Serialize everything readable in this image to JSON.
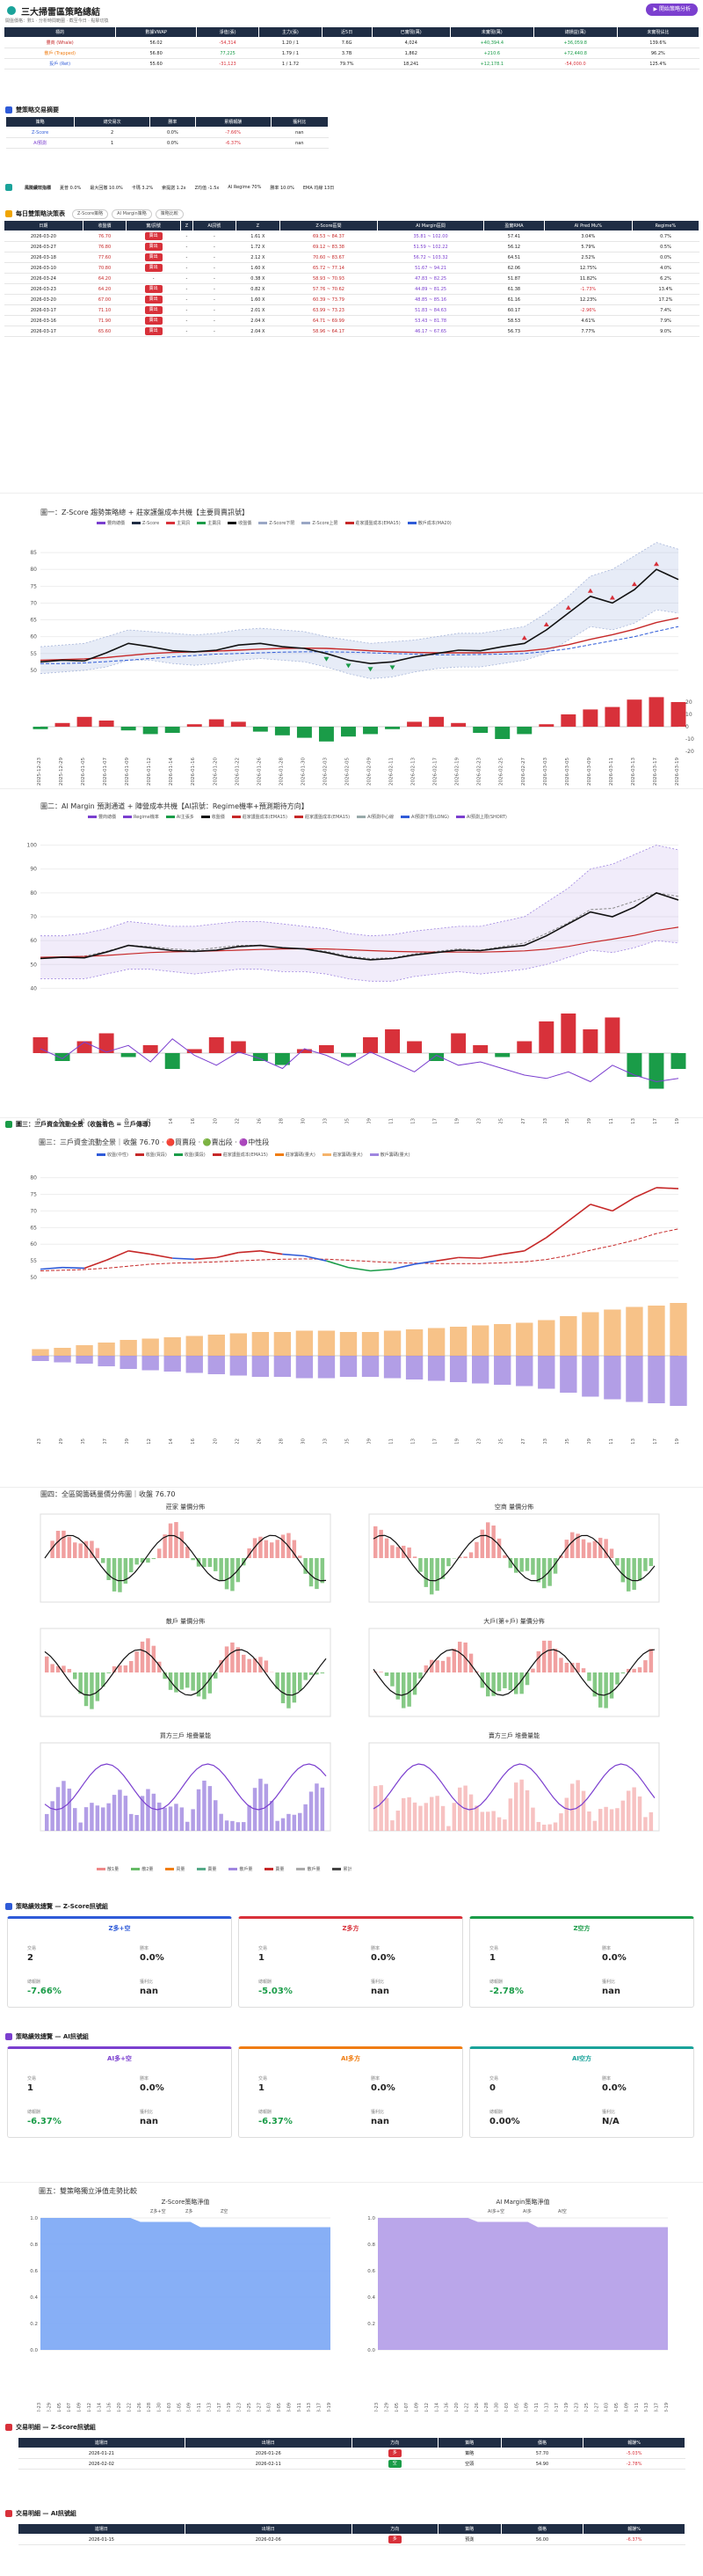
{
  "app": {
    "title": "三大掃雷區策略總結",
    "cta": "▶ 開始策略分析"
  },
  "subline": "開盤價格：數1 · 分析時間範圍 · 截至今日 · 點擊切換",
  "summary": {
    "headers": [
      "標的",
      "數據VWAP",
      "淨值(張)",
      "主力(張)",
      "近5日",
      "已實現(萬)",
      "未實現(萬)",
      "總損益(萬)",
      "未實現佔比"
    ],
    "rows": [
      [
        "豐商 (Whale)",
        "56.02",
        "-54,314",
        "1.20 / 1",
        "7.6G",
        "4,024",
        "+40,394.4",
        "+36,059.8",
        "139.6%"
      ],
      [
        "散戶 (Trapped)",
        "56.80",
        "77,225",
        "1.79 / 1",
        "3.7B",
        "1,862",
        "+210.6",
        "+72,440.8",
        "96.2%"
      ],
      [
        "投戶 (Ret)",
        "55.60",
        "-31,123",
        "1 / 1.72",
        "79.7%",
        "18,241",
        "+12,178.1",
        "-54,000.0",
        "125.4%"
      ]
    ]
  },
  "strategy": {
    "title": "雙策略交易摘要",
    "headers": [
      "策略",
      "總交易次",
      "勝率",
      "累積報酬",
      "獲利比"
    ],
    "rows": [
      [
        "Z-Score",
        "2",
        "0.0%",
        "-7.66%",
        "nan"
      ],
      [
        "AI預測",
        "1",
        "0.0%",
        "-6.37%",
        "nan"
      ]
    ]
  },
  "perf": {
    "label": "風險績效指標",
    "items": [
      "夏普 0.0%",
      "最大回撤 10.0%",
      "卡瑪 3.2%",
      "索提諾 1.2x",
      "Z均值 -1.5x",
      "AI Regime 70%",
      "勝率 10.0%",
      "EMA 均線 13日"
    ]
  },
  "daily": {
    "title": "每日雙策略決策表",
    "tabs": [
      "Z-Score策略",
      "AI Margin策略",
      "策略比較"
    ],
    "headers": [
      "日期",
      "收盤價",
      "實/訊號",
      "Z",
      "AI訊號",
      "Z",
      "Z-Score區間",
      "AI Margin區間",
      "盈實RMA",
      "AI Pred Mu%",
      "Regime%"
    ],
    "rows": [
      [
        "2026-03-20",
        "76.70",
        "賣出",
        "-",
        "-",
        "1.61 X",
        "69.53 ~ 84.37",
        "35.81 ~ 102.00",
        "57.41",
        "3.04%",
        "0.7%"
      ],
      [
        "2026-03-27",
        "76.80",
        "賣出",
        "-",
        "-",
        "1.72 X",
        "69.12 ~ 83.38",
        "51.59 ~ 102.22",
        "56.12",
        "5.79%",
        "0.5%"
      ],
      [
        "2026-03-18",
        "77.60",
        "賣出",
        "-",
        "-",
        "2.12 X",
        "70.60 ~ 83.67",
        "56.72 ~ 103.32",
        "64.51",
        "2.52%",
        "0.0%"
      ],
      [
        "2026-03-10",
        "70.80",
        "賣出",
        "-",
        "-",
        "1.60 X",
        "65.72 ~ 77.14",
        "51.67 ~ 94.21",
        "62.06",
        "12.75%",
        "4.0%"
      ],
      [
        "2026-03-24",
        "64.20",
        "-",
        "-",
        "-",
        "0.38 X",
        "58.93 ~ 70.93",
        "47.83 ~ 82.25",
        "51.87",
        "11.82%",
        "6.2%"
      ],
      [
        "2026-03-23",
        "64.20",
        "賣出",
        "-",
        "-",
        "0.82 X",
        "57.76 ~ 70.62",
        "44.89 ~ 81.25",
        "61.38",
        "-1.73%",
        "13.4%"
      ],
      [
        "2026-03-20",
        "67.00",
        "賣出",
        "-",
        "-",
        "1.60 X",
        "60.39 ~ 73.79",
        "48.85 ~ 85.16",
        "61.16",
        "12.23%",
        "17.2%"
      ],
      [
        "2026-03-17",
        "71.10",
        "賣出",
        "-",
        "-",
        "2.01 X",
        "63.99 ~ 73.23",
        "51.83 ~ 84.63",
        "60.17",
        "-2.96%",
        "7.4%"
      ],
      [
        "2026-03-16",
        "71.90",
        "賣出",
        "-",
        "-",
        "2.04 X",
        "64.71 ~ 69.99",
        "53.43 ~ 81.78",
        "58.53",
        "4.61%",
        "7.9%"
      ],
      [
        "2026-03-17",
        "65.60",
        "賣出",
        "-",
        "-",
        "2.04 X",
        "58.96 ~ 64.17",
        "46.17 ~ 67.65",
        "56.73",
        "7.77%",
        "9.0%"
      ]
    ]
  },
  "chart1": {
    "title": "圖一：Z-Score 趨勢策略總 + 莊家護盤成本共機【主要買賣訊號】",
    "legend": [
      "豐商總價",
      "Z-Score",
      "主買訊",
      "主賣訊",
      "收盤價",
      "Z-Score下限",
      "Z-Score上限",
      "莊家護盤成本(EMA15)",
      "散戶成本(MA20)"
    ],
    "chart_data": {
      "type": "line",
      "ylim": [
        45,
        90
      ],
      "yticks": [
        "50",
        "55",
        "60",
        "65",
        "70",
        "75",
        "80",
        "85"
      ],
      "x": [
        "2025-12-23",
        "2025-12-29",
        "2026-01-05",
        "2026-01-07",
        "2026-01-09",
        "2026-01-12",
        "2026-01-14",
        "2026-01-16",
        "2026-01-20",
        "2026-01-22",
        "2026-01-26",
        "2026-01-28",
        "2026-01-30",
        "2026-02-03",
        "2026-02-05",
        "2026-02-09",
        "2026-02-11",
        "2026-02-13",
        "2026-02-17",
        "2026-02-19",
        "2026-02-23",
        "2026-02-25",
        "2026-02-27",
        "2026-03-03",
        "2026-03-05",
        "2026-03-09",
        "2026-03-11",
        "2026-03-13",
        "2026-03-17",
        "2026-03-19"
      ],
      "close": [
        52.5,
        53,
        52.8,
        55.2,
        58,
        57,
        55.8,
        55.5,
        56,
        57.5,
        58,
        57,
        56.5,
        55,
        53,
        52,
        52.5,
        54,
        55,
        56,
        55.8,
        57,
        58,
        62,
        67,
        72,
        70,
        74,
        80,
        77
      ],
      "upper": [
        57,
        57.5,
        58,
        60,
        62,
        61.5,
        61,
        60.5,
        61,
        62,
        62.5,
        62,
        61.5,
        60,
        59,
        58,
        58.5,
        59,
        60,
        61,
        61,
        62,
        63,
        67,
        72,
        78,
        80,
        84,
        88,
        86
      ],
      "lower": [
        49,
        49.5,
        50,
        51,
        53,
        53,
        52,
        51.5,
        52,
        53,
        53.5,
        53,
        52.5,
        51,
        49,
        47.5,
        48,
        49.5,
        50.5,
        51,
        51,
        52,
        53,
        55,
        59,
        63,
        62,
        64,
        68,
        67
      ],
      "ema": [
        53,
        53.2,
        53.4,
        53.8,
        54.4,
        55,
        55.3,
        55.5,
        55.7,
        56,
        56.3,
        56.5,
        56.6,
        56.5,
        56.2,
        55.8,
        55.5,
        55.3,
        55.2,
        55.2,
        55.2,
        55.4,
        55.7,
        56.4,
        57.6,
        59.2,
        60.6,
        62.2,
        64.2,
        65.6
      ],
      "ma": [
        52,
        52,
        52.2,
        52.6,
        53,
        53.5,
        54,
        54.4,
        54.8,
        55,
        55.2,
        55.4,
        55.5,
        55.5,
        55.4,
        55.2,
        55,
        54.8,
        54.6,
        54.6,
        54.7,
        54.8,
        55,
        55.6,
        56.4,
        57.6,
        58.8,
        60,
        61.6,
        63
      ],
      "buy": [
        13,
        14,
        15,
        16
      ],
      "sell": [
        22,
        23,
        24,
        25,
        26,
        27,
        28
      ],
      "zscore": [
        -2,
        3,
        8,
        5,
        -3,
        -6,
        -5,
        2,
        6,
        4,
        -4,
        -7,
        -9,
        -12,
        -8,
        -6,
        -2,
        4,
        8,
        3,
        -5,
        -10,
        -6,
        2,
        10,
        14,
        16,
        22,
        24,
        20
      ],
      "zyticks": [
        "-20",
        "-10",
        "0",
        "10",
        "20"
      ]
    }
  },
  "chart2": {
    "title": "圖二：AI Margin 預測通道 + 陣營成本共機【AI訊號：Regime機率+預測期待方向】",
    "legend": [
      "豐商總價",
      "Regime機率",
      "AI主張多",
      "收盤價",
      "莊家護盤成本(EMA15)",
      "莊家護盤成本(EMA15)",
      "AI預測中心線",
      "AI預測下限(LONG)",
      "AI預測上限(SHORT)"
    ],
    "chart_data": {
      "type": "line",
      "ylim": [
        35,
        105
      ],
      "yticks": [
        "40",
        "50",
        "60",
        "70",
        "80",
        "90",
        "100"
      ],
      "close": [
        52.5,
        53,
        52.8,
        55.2,
        58,
        57,
        55.8,
        55.5,
        56,
        57.5,
        58,
        57,
        56.5,
        55,
        53,
        52,
        52.5,
        54,
        55,
        56,
        55.8,
        57,
        58,
        62,
        67,
        72,
        70,
        74,
        80,
        77
      ],
      "upper": [
        62,
        62,
        63,
        65,
        68,
        67,
        66,
        66,
        67,
        68,
        68,
        67,
        66,
        65,
        63,
        62,
        62.5,
        64,
        65,
        66,
        66,
        68,
        70,
        76,
        82,
        90,
        92,
        96,
        100,
        98
      ],
      "lower": [
        44,
        44,
        44,
        46,
        48,
        48,
        47,
        46,
        47,
        48,
        48,
        47,
        47,
        46,
        44,
        43,
        43,
        45,
        46,
        47,
        46,
        47,
        48,
        50,
        53,
        56,
        55,
        57,
        60,
        59
      ],
      "mid": [
        53,
        53,
        53.5,
        55.5,
        58,
        57.5,
        56.5,
        56,
        57,
        58,
        58,
        57,
        56.5,
        55.5,
        53.5,
        52.5,
        52.8,
        54.5,
        55.5,
        56.5,
        56,
        57.5,
        59,
        63,
        67.5,
        73,
        73.5,
        76.5,
        80,
        78.5
      ],
      "ema": [
        53,
        53.2,
        53.4,
        53.8,
        54.4,
        55,
        55.3,
        55.5,
        55.7,
        56,
        56.3,
        56.5,
        56.6,
        56.5,
        56.2,
        55.8,
        55.5,
        55.3,
        55.2,
        55.2,
        55.2,
        55.4,
        55.7,
        56.4,
        57.6,
        59.2,
        60.6,
        62.2,
        64.2,
        65.6
      ],
      "margin": [
        20,
        -10,
        15,
        25,
        -5,
        10,
        -20,
        5,
        20,
        15,
        -10,
        -15,
        5,
        10,
        -5,
        20,
        30,
        15,
        -10,
        25,
        10,
        -5,
        15,
        40,
        50,
        30,
        45,
        -30,
        -45,
        -20
      ],
      "regime": [
        60,
        45,
        70,
        55,
        65,
        40,
        75,
        50,
        35,
        55,
        45,
        30,
        60,
        50,
        35,
        55,
        40,
        25,
        50,
        35,
        40,
        30,
        20,
        15,
        25,
        10,
        35,
        20,
        10,
        15
      ]
    }
  },
  "chart3head": {
    "title": "圖三：三戶資金流動全景（收盤看色 = 三戶傳導）"
  },
  "chart3": {
    "title": "圖三：三戶資金流動全景｜收盤 76.70 · 🔴買賣段 · 🟢賣出段 · 🟣中性段",
    "legend": [
      "收盤(中性)",
      "收盤(買段)",
      "收盤(賣段)",
      "莊家護盤成本(EMA15)",
      "莊家籌碼(量大)",
      "莊家籌碼(量大)",
      "散戶籌碼(量大)"
    ],
    "chart_data": {
      "type": "line",
      "ylim": [
        45,
        82
      ],
      "yticks": [
        "50",
        "55",
        "60",
        "65",
        "70",
        "75",
        "80"
      ],
      "close": [
        52.5,
        53,
        52.8,
        55.2,
        58,
        57,
        55.8,
        55.5,
        56,
        57.5,
        58,
        57,
        56.5,
        55,
        53,
        52,
        52.5,
        54,
        55,
        56,
        55.8,
        57,
        58,
        62,
        67,
        72,
        70,
        74,
        77,
        76.7
      ],
      "ema": [
        52,
        52.2,
        52.4,
        52.8,
        53.4,
        54,
        54.3,
        54.5,
        54.7,
        55,
        55.3,
        55.5,
        55.6,
        55.5,
        55.2,
        54.8,
        54.5,
        54.3,
        54.2,
        54.2,
        54.2,
        54.4,
        54.7,
        55.4,
        56.6,
        58.2,
        59.6,
        61.2,
        63.2,
        64.6
      ],
      "whale": [
        5,
        6,
        8,
        10,
        12,
        13,
        14,
        15,
        16,
        17,
        18,
        18,
        19,
        19,
        18,
        18,
        19,
        20,
        21,
        22,
        23,
        24,
        25,
        27,
        30,
        33,
        35,
        37,
        38,
        40
      ],
      "retail": [
        -4,
        -5,
        -6,
        -8,
        -10,
        -11,
        -12,
        -13,
        -14,
        -15,
        -16,
        -16,
        -17,
        -17,
        -16,
        -16,
        -17,
        -18,
        -19,
        -20,
        -21,
        -22,
        -23,
        -25,
        -28,
        -31,
        -33,
        -35,
        -36,
        -38
      ]
    }
  },
  "chart4": {
    "title": "圖四：全區間籌碼量價分佈圖｜收盤 76.70",
    "panels": [
      {
        "title": "莊家 量價分佈"
      },
      {
        "title": "空商 量價分佈"
      },
      {
        "title": "散戶 量價分佈"
      },
      {
        "title": "大戶(第+戶) 量價分佈"
      },
      {
        "title": "買方三戶 堆疊量能"
      },
      {
        "title": "賣方三戶 堆疊量能"
      }
    ],
    "legend": [
      "散1量",
      "散2量",
      "買量",
      "賣量",
      "散戶量",
      "賣量",
      "散戶量",
      "累計"
    ]
  },
  "zpanel": {
    "title": "策略績效總覽 — Z-Score訊號組",
    "cards": [
      {
        "title": "Z多+空",
        "color": "#2f5bd8",
        "trades": "2",
        "win": "0.0%",
        "ret": "-7.66%",
        "pf": "nan"
      },
      {
        "title": "Z多方",
        "color": "#d8313a",
        "trades": "1",
        "win": "0.0%",
        "ret": "-5.03%",
        "pf": "nan"
      },
      {
        "title": "Z空方",
        "color": "#1a9c48",
        "trades": "1",
        "win": "0.0%",
        "ret": "-2.78%",
        "pf": "nan"
      }
    ],
    "labels": {
      "trades": "交易",
      "win": "勝率",
      "ret": "總報酬",
      "pf": "獲利比"
    }
  },
  "aipanel": {
    "title": "策略績效總覽 — AI訊號組",
    "cards": [
      {
        "title": "AI多+空",
        "color": "#7b3fcf",
        "trades": "1",
        "win": "0.0%",
        "ret": "-6.37%",
        "pf": "nan"
      },
      {
        "title": "AI多方",
        "color": "#f07d12",
        "trades": "1",
        "win": "0.0%",
        "ret": "-6.37%",
        "pf": "nan"
      },
      {
        "title": "AI空方",
        "color": "#1aa39a",
        "trades": "0",
        "win": "0.0%",
        "ret": "0.00%",
        "pf": "N/A"
      }
    ]
  },
  "chart5": {
    "title": "圖五：雙策略獨立淨值走勢比較",
    "left": {
      "title": "Z-Score策略淨值",
      "legend": [
        "Z多+空",
        "Z多",
        "Z空"
      ],
      "yticks": [
        "0.0",
        "0.2",
        "0.4",
        "0.6",
        "0.8",
        "1.0"
      ]
    },
    "right": {
      "title": "AI Margin策略淨值",
      "legend": [
        "AI多+空",
        "AI多",
        "AI空"
      ],
      "yticks": [
        "0.0",
        "0.2",
        "0.4",
        "0.6",
        "0.8",
        "1.0"
      ]
    }
  },
  "trade1": {
    "title": "交易明細 — Z-Score訊號組",
    "headers": [
      "進場日",
      "出場日",
      "方向",
      "策略",
      "價格",
      "報酬%"
    ],
    "rows": [
      [
        "2026-01-21",
        "2026-01-26",
        "多",
        "策略",
        "57.70",
        "-5.03%"
      ],
      [
        "2026-02-02",
        "2026-02-11",
        "空",
        "空頭",
        "54.90",
        "-2.78%"
      ]
    ]
  },
  "trade2": {
    "title": "交易明細 — AI訊號組",
    "headers": [
      "進場日",
      "出場日",
      "方向",
      "策略",
      "價格",
      "報酬%"
    ],
    "rows": [
      [
        "2026-01-15",
        "2026-02-06",
        "多",
        "預測",
        "56.00",
        "-6.37%"
      ]
    ]
  }
}
